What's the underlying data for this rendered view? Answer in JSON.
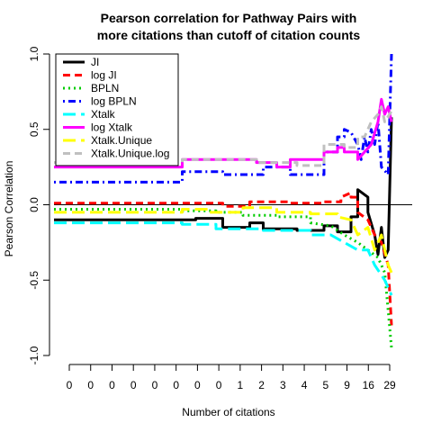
{
  "chart_data": {
    "type": "line",
    "title_line1": "Pearson correlation for Pathway Pairs with",
    "title_line2": "more citations than cutoff of citation counts",
    "xlabel": "Number of citations",
    "ylabel": "Pearson Correlation",
    "ylim": [
      -1.0,
      1.0
    ],
    "x_tick_labels": [
      "0",
      "0",
      "0",
      "0",
      "0",
      "0",
      "0",
      "0",
      "1",
      "2",
      "3",
      "4",
      "5",
      "9",
      "16",
      "29"
    ],
    "y_ticks": [
      {
        "value": -1.0,
        "label": "-1.0"
      },
      {
        "value": -0.5,
        "label": "-0.5"
      },
      {
        "value": 0.0,
        "label": "0.0"
      },
      {
        "value": 0.5,
        "label": "0.5"
      },
      {
        "value": 1.0,
        "label": "1.0"
      }
    ],
    "reference_lines": [
      0.0
    ],
    "legend_position": "top-left",
    "series": [
      {
        "name": "JI",
        "color": "#000000",
        "dash": "solid",
        "points": [
          [
            0,
            -0.1
          ],
          [
            0.42,
            -0.1
          ],
          [
            0.42,
            -0.09
          ],
          [
            0.5,
            -0.09
          ],
          [
            0.5,
            -0.15
          ],
          [
            0.58,
            -0.15
          ],
          [
            0.58,
            -0.12
          ],
          [
            0.62,
            -0.12
          ],
          [
            0.62,
            -0.16
          ],
          [
            0.72,
            -0.16
          ],
          [
            0.72,
            -0.17
          ],
          [
            0.8,
            -0.17
          ],
          [
            0.8,
            -0.14
          ],
          [
            0.84,
            -0.14
          ],
          [
            0.84,
            -0.18
          ],
          [
            0.88,
            -0.18
          ],
          [
            0.88,
            -0.08
          ],
          [
            0.9,
            -0.08
          ],
          [
            0.9,
            0.1
          ],
          [
            0.93,
            0.05
          ],
          [
            0.93,
            -0.05
          ],
          [
            0.95,
            -0.2
          ],
          [
            0.96,
            -0.33
          ],
          [
            0.97,
            -0.15
          ],
          [
            0.98,
            -0.35
          ],
          [
            0.99,
            -0.3
          ],
          [
            1.0,
            0.58
          ]
        ]
      },
      {
        "name": "log JI",
        "color": "#ff0000",
        "dash": "dashed",
        "points": [
          [
            0,
            0.01
          ],
          [
            0.5,
            0.01
          ],
          [
            0.5,
            -0.01
          ],
          [
            0.58,
            -0.01
          ],
          [
            0.58,
            0.02
          ],
          [
            0.7,
            0.02
          ],
          [
            0.7,
            0.01
          ],
          [
            0.8,
            0.01
          ],
          [
            0.8,
            0.02
          ],
          [
            0.85,
            0.02
          ],
          [
            0.85,
            0.05
          ],
          [
            0.88,
            0.08
          ],
          [
            0.88,
            0.05
          ],
          [
            0.9,
            0.05
          ],
          [
            0.9,
            -0.05
          ],
          [
            0.93,
            -0.1
          ],
          [
            0.95,
            -0.2
          ],
          [
            0.97,
            -0.25
          ],
          [
            0.99,
            -0.4
          ],
          [
            1.0,
            -0.8
          ]
        ]
      },
      {
        "name": "BPLN",
        "color": "#00cc00",
        "dash": "dotted",
        "points": [
          [
            0,
            -0.03
          ],
          [
            0.38,
            -0.03
          ],
          [
            0.38,
            -0.04
          ],
          [
            0.48,
            -0.04
          ],
          [
            0.48,
            -0.05
          ],
          [
            0.56,
            -0.05
          ],
          [
            0.56,
            -0.07
          ],
          [
            0.66,
            -0.07
          ],
          [
            0.66,
            -0.08
          ],
          [
            0.76,
            -0.08
          ],
          [
            0.76,
            -0.12
          ],
          [
            0.82,
            -0.14
          ],
          [
            0.86,
            -0.2
          ],
          [
            0.9,
            -0.25
          ],
          [
            0.93,
            -0.3
          ],
          [
            0.96,
            -0.35
          ],
          [
            0.98,
            -0.45
          ],
          [
            1.0,
            -0.95
          ]
        ]
      },
      {
        "name": "log BPLN",
        "color": "#0000ff",
        "dash": "dotdash",
        "points": [
          [
            0,
            0.15
          ],
          [
            0.38,
            0.15
          ],
          [
            0.38,
            0.22
          ],
          [
            0.5,
            0.22
          ],
          [
            0.5,
            0.2
          ],
          [
            0.62,
            0.2
          ],
          [
            0.62,
            0.25
          ],
          [
            0.7,
            0.25
          ],
          [
            0.7,
            0.2
          ],
          [
            0.8,
            0.2
          ],
          [
            0.8,
            0.35
          ],
          [
            0.84,
            0.35
          ],
          [
            0.84,
            0.45
          ],
          [
            0.86,
            0.45
          ],
          [
            0.86,
            0.5
          ],
          [
            0.88,
            0.48
          ],
          [
            0.9,
            0.4
          ],
          [
            0.91,
            0.3
          ],
          [
            0.92,
            0.45
          ],
          [
            0.93,
            0.35
          ],
          [
            0.94,
            0.5
          ],
          [
            0.95,
            0.4
          ],
          [
            0.96,
            0.55
          ],
          [
            0.97,
            0.25
          ],
          [
            0.99,
            0.2
          ],
          [
            1.0,
            1.0
          ]
        ]
      },
      {
        "name": "Xtalk",
        "color": "#00ffff",
        "dash": "longdash",
        "points": [
          [
            0,
            -0.12
          ],
          [
            0.38,
            -0.12
          ],
          [
            0.38,
            -0.13
          ],
          [
            0.48,
            -0.13
          ],
          [
            0.48,
            -0.16
          ],
          [
            0.62,
            -0.16
          ],
          [
            0.62,
            -0.17
          ],
          [
            0.76,
            -0.17
          ],
          [
            0.76,
            -0.2
          ],
          [
            0.82,
            -0.2
          ],
          [
            0.86,
            -0.25
          ],
          [
            0.9,
            -0.3
          ],
          [
            0.93,
            -0.3
          ],
          [
            0.95,
            -0.4
          ],
          [
            0.98,
            -0.5
          ],
          [
            1.0,
            -0.6
          ]
        ]
      },
      {
        "name": "log Xtalk",
        "color": "#ff00ff",
        "dash": "solid",
        "points": [
          [
            0,
            0.25
          ],
          [
            0.38,
            0.25
          ],
          [
            0.38,
            0.3
          ],
          [
            0.6,
            0.3
          ],
          [
            0.6,
            0.28
          ],
          [
            0.66,
            0.28
          ],
          [
            0.66,
            0.25
          ],
          [
            0.7,
            0.25
          ],
          [
            0.7,
            0.3
          ],
          [
            0.8,
            0.3
          ],
          [
            0.8,
            0.35
          ],
          [
            0.84,
            0.35
          ],
          [
            0.84,
            0.38
          ],
          [
            0.86,
            0.38
          ],
          [
            0.86,
            0.35
          ],
          [
            0.9,
            0.35
          ],
          [
            0.9,
            0.3
          ],
          [
            0.92,
            0.35
          ],
          [
            0.94,
            0.4
          ],
          [
            0.96,
            0.55
          ],
          [
            0.97,
            0.7
          ],
          [
            0.98,
            0.6
          ],
          [
            0.99,
            0.65
          ],
          [
            1.0,
            0.55
          ]
        ]
      },
      {
        "name": "Xtalk.Unique",
        "color": "#ffff00",
        "dash": "longdash",
        "points": [
          [
            0,
            -0.05
          ],
          [
            0.38,
            -0.05
          ],
          [
            0.38,
            -0.03
          ],
          [
            0.46,
            -0.03
          ],
          [
            0.46,
            -0.05
          ],
          [
            0.56,
            -0.05
          ],
          [
            0.56,
            -0.02
          ],
          [
            0.66,
            -0.02
          ],
          [
            0.66,
            -0.05
          ],
          [
            0.76,
            -0.05
          ],
          [
            0.76,
            -0.06
          ],
          [
            0.84,
            -0.06
          ],
          [
            0.84,
            -0.08
          ],
          [
            0.88,
            -0.1
          ],
          [
            0.9,
            -0.2
          ],
          [
            0.93,
            -0.15
          ],
          [
            0.95,
            -0.3
          ],
          [
            0.97,
            -0.2
          ],
          [
            0.99,
            -0.4
          ],
          [
            1.0,
            -0.45
          ]
        ]
      },
      {
        "name": "Xtalk.Unique.log",
        "color": "#c0c0c0",
        "dash": "dashed",
        "points": [
          [
            0,
            0.28
          ],
          [
            0.38,
            0.28
          ],
          [
            0.38,
            0.3
          ],
          [
            0.6,
            0.3
          ],
          [
            0.6,
            0.28
          ],
          [
            0.72,
            0.28
          ],
          [
            0.72,
            0.26
          ],
          [
            0.8,
            0.26
          ],
          [
            0.8,
            0.4
          ],
          [
            0.86,
            0.4
          ],
          [
            0.86,
            0.38
          ],
          [
            0.9,
            0.38
          ],
          [
            0.9,
            0.45
          ],
          [
            0.92,
            0.45
          ],
          [
            0.94,
            0.55
          ],
          [
            0.96,
            0.6
          ],
          [
            0.97,
            0.65
          ],
          [
            0.98,
            0.55
          ],
          [
            1.0,
            0.62
          ]
        ]
      }
    ]
  }
}
